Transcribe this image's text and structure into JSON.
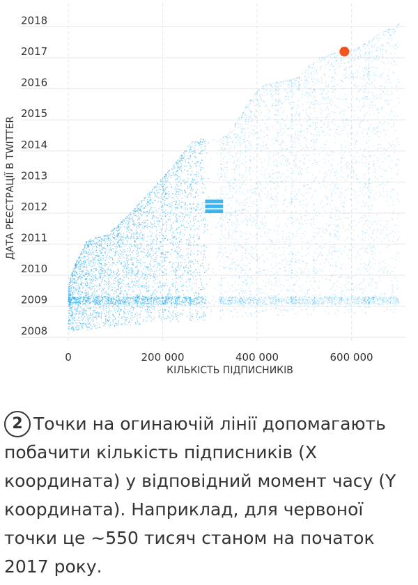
{
  "colors": {
    "points": "#1aa7ec",
    "highlight": "#f0541e",
    "grid": "#e6e6e6",
    "text": "#333333"
  },
  "chart_data": {
    "type": "scatter",
    "xlabel": "КІЛЬКІСТЬ ПІДПИСНИКІВ",
    "ylabel": "ДАТА РЕЄСТРАЦІЇ В TWITTER",
    "x_ticks": [
      {
        "value": 0,
        "label": "0"
      },
      {
        "value": 200000,
        "label": "200 000"
      },
      {
        "value": 400000,
        "label": "400 000"
      },
      {
        "value": 600000,
        "label": "600 000"
      }
    ],
    "y_ticks": [
      "2008",
      "2009",
      "2010",
      "2011",
      "2012",
      "2013",
      "2014",
      "2015",
      "2016",
      "2017",
      "2018"
    ],
    "xlim": [
      0,
      735000
    ],
    "ylim": [
      2007.85,
      2018.3
    ],
    "grid": true,
    "envelope": {
      "description": "upper boundary of the follower cloud (x = follower count, y = account creation year)",
      "x": [
        0,
        2000,
        5000,
        12000,
        22000,
        30000,
        38000,
        50000,
        80000,
        100000,
        130000,
        160000,
        190000,
        220000,
        240000,
        260000,
        280000,
        300000,
        320000,
        335000,
        350000,
        370000,
        390000,
        410000,
        430000,
        450000,
        470000,
        490000,
        510000,
        530000,
        550000,
        570000,
        600000,
        630000,
        660000,
        690000,
        700000
      ],
      "y": [
        2009.6,
        2009.8,
        2010.0,
        2010.3,
        2010.6,
        2010.85,
        2011.1,
        2011.2,
        2011.3,
        2011.55,
        2012.0,
        2012.5,
        2013.0,
        2013.5,
        2013.9,
        2014.3,
        2014.4,
        2014.4,
        2014.4,
        2014.5,
        2014.8,
        2015.3,
        2015.8,
        2016.1,
        2016.2,
        2016.25,
        2016.3,
        2016.4,
        2016.8,
        2017.0,
        2017.1,
        2017.2,
        2017.25,
        2017.5,
        2017.8,
        2018.0,
        2018.1
      ]
    },
    "bottom_edge": {
      "x": [
        0,
        60000,
        200000,
        300000,
        400000,
        560000,
        700000
      ],
      "y": [
        2008.2,
        2008.3,
        2008.5,
        2008.55,
        2008.7,
        2008.75,
        2008.8
      ]
    },
    "dense_band_year": 2009.2,
    "sparse_column": {
      "x_start": 290000,
      "x_end": 318000
    },
    "bright_band_2012": {
      "x_start": 290000,
      "x_end": 328000,
      "y_start": 2012.0,
      "y_end": 2012.45
    },
    "highlight_point": {
      "x": 585000,
      "y": 2017.2
    }
  },
  "caption": {
    "step_number": "2",
    "text": "Точки на огинаючій лінії допомагають побачити кількість підписників (X координата) у відповідний момент часу (Y координата). Наприклад, для червоної точки це ~550 тисяч станом на початок 2017 року."
  }
}
